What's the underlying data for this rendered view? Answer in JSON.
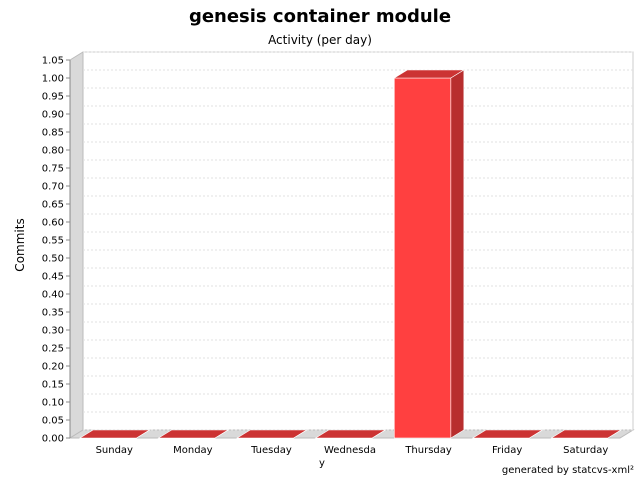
{
  "chart_data": {
    "type": "bar",
    "title": "genesis container module",
    "subtitle": "Activity (per day)",
    "ylabel": "Commits",
    "xlabel": "",
    "categories": [
      "Sunday",
      "Monday",
      "Tuesday",
      "Wednesday",
      "Thursday",
      "Friday",
      "Saturday"
    ],
    "values": [
      0,
      0,
      0,
      0,
      1,
      0,
      0
    ],
    "ylim": [
      0,
      1.05
    ],
    "yticks": [
      "0.00",
      "0.05",
      "0.10",
      "0.15",
      "0.20",
      "0.25",
      "0.30",
      "0.35",
      "0.40",
      "0.45",
      "0.50",
      "0.55",
      "0.60",
      "0.65",
      "0.70",
      "0.75",
      "0.80",
      "0.85",
      "0.90",
      "0.95",
      "1.00",
      "1.05"
    ],
    "grid": true,
    "bar_color": "#ff4040",
    "footer": "generated by statcvs-xml²"
  }
}
